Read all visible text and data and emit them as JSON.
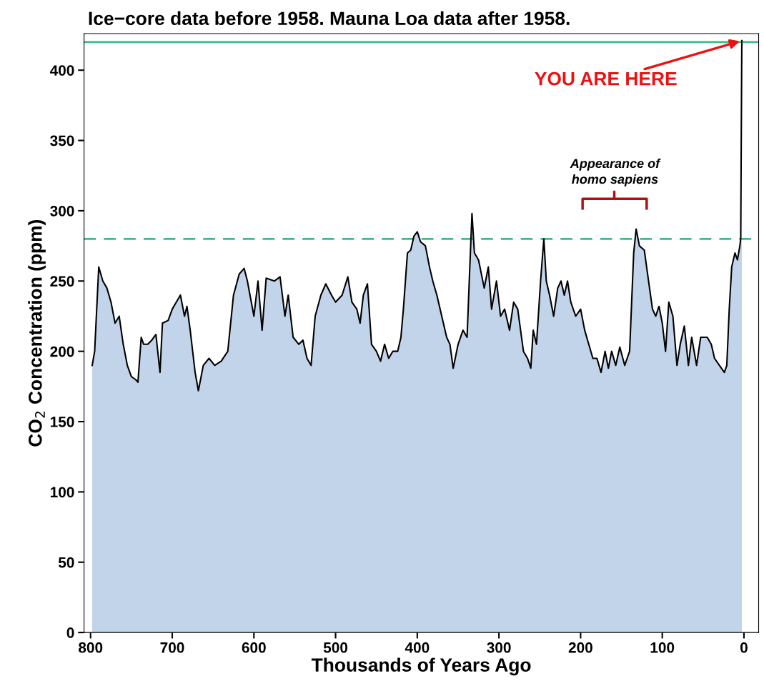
{
  "chart_data": {
    "type": "area",
    "title": "Ice−core data before 1958. Mauna Loa data after 1958.",
    "xlabel": "Thousands of Years Ago",
    "ylabel": "CO$_{2}$ Concentration (ppm)",
    "xlim": [
      808,
      -18
    ],
    "xticks": [
      800,
      700,
      600,
      500,
      400,
      300,
      200,
      100,
      0
    ],
    "ylim": [
      0,
      426
    ],
    "yticks": [
      0,
      50,
      100,
      150,
      200,
      250,
      300,
      350,
      400
    ],
    "grid": false,
    "x": [
      798,
      795,
      790,
      785,
      780,
      775,
      770,
      765,
      760,
      755,
      750,
      745,
      742,
      738,
      735,
      730,
      725,
      720,
      715,
      712,
      705,
      700,
      695,
      690,
      685,
      682,
      678,
      672,
      668,
      662,
      655,
      648,
      640,
      632,
      625,
      618,
      612,
      608,
      600,
      595,
      590,
      585,
      575,
      568,
      562,
      558,
      552,
      545,
      540,
      535,
      530,
      525,
      518,
      512,
      505,
      500,
      492,
      485,
      480,
      474,
      470,
      466,
      461,
      456,
      450,
      445,
      440,
      435,
      430,
      424,
      420,
      417,
      412,
      408,
      404,
      400,
      396,
      390,
      385,
      381,
      376,
      370,
      364,
      360,
      356,
      350,
      344,
      339,
      336,
      333,
      330,
      325,
      318,
      313,
      309,
      303,
      298,
      293,
      287,
      282,
      277,
      270,
      265,
      261,
      258,
      254,
      249,
      245,
      242,
      238,
      233,
      228,
      224,
      220,
      216,
      212,
      206,
      200,
      195,
      190,
      185,
      180,
      175,
      170,
      166,
      162,
      157,
      152,
      146,
      140,
      135,
      132,
      128,
      122,
      118,
      112,
      108,
      104,
      100,
      96,
      92,
      87,
      82,
      78,
      73,
      68,
      64,
      58,
      53,
      45,
      40,
      36,
      30,
      24,
      21,
      18,
      15,
      11,
      8,
      5,
      4,
      2.6
    ],
    "series": [
      {
        "color": "#c2d4ea",
        "values": [
          190,
          200,
          260,
          250,
          245,
          235,
          220,
          225,
          205,
          190,
          182,
          180,
          178,
          210,
          205,
          205,
          208,
          212,
          185,
          220,
          222,
          230,
          235,
          240,
          225,
          232,
          215,
          185,
          172,
          190,
          195,
          190,
          193,
          200,
          240,
          255,
          259,
          250,
          225,
          250,
          215,
          252,
          250,
          253,
          225,
          240,
          210,
          205,
          208,
          195,
          190,
          225,
          240,
          248,
          240,
          235,
          240,
          253,
          235,
          230,
          220,
          240,
          248,
          205,
          200,
          193,
          205,
          195,
          200,
          200,
          210,
          230,
          270,
          272,
          282,
          285,
          278,
          275,
          260,
          250,
          240,
          225,
          210,
          205,
          188,
          205,
          215,
          210,
          255,
          298,
          270,
          265,
          245,
          260,
          230,
          250,
          225,
          230,
          215,
          235,
          230,
          200,
          195,
          188,
          215,
          205,
          250,
          280,
          250,
          240,
          225,
          245,
          250,
          240,
          250,
          235,
          225,
          230,
          215,
          205,
          195,
          195,
          185,
          200,
          188,
          200,
          190,
          203,
          190,
          200,
          270,
          287,
          275,
          272,
          255,
          230,
          225,
          232,
          220,
          200,
          235,
          225,
          190,
          205,
          218,
          190,
          210,
          190,
          210,
          210,
          205,
          195,
          190,
          185,
          190,
          230,
          260,
          270,
          265,
          275,
          280,
          421
        ]
      }
    ],
    "ref_lines": [
      {
        "axis": "y",
        "value": 420,
        "color": "#3dbb8a",
        "line_style": "solid"
      },
      {
        "axis": "y",
        "value": 280,
        "color": "#3dbb8a",
        "line_style": "dashed"
      }
    ],
    "annotations": [
      {
        "text": "YOU ARE HERE",
        "x": 2.6,
        "y": 421
      },
      "Appearance of\nhomo sapiens"
    ]
  }
}
